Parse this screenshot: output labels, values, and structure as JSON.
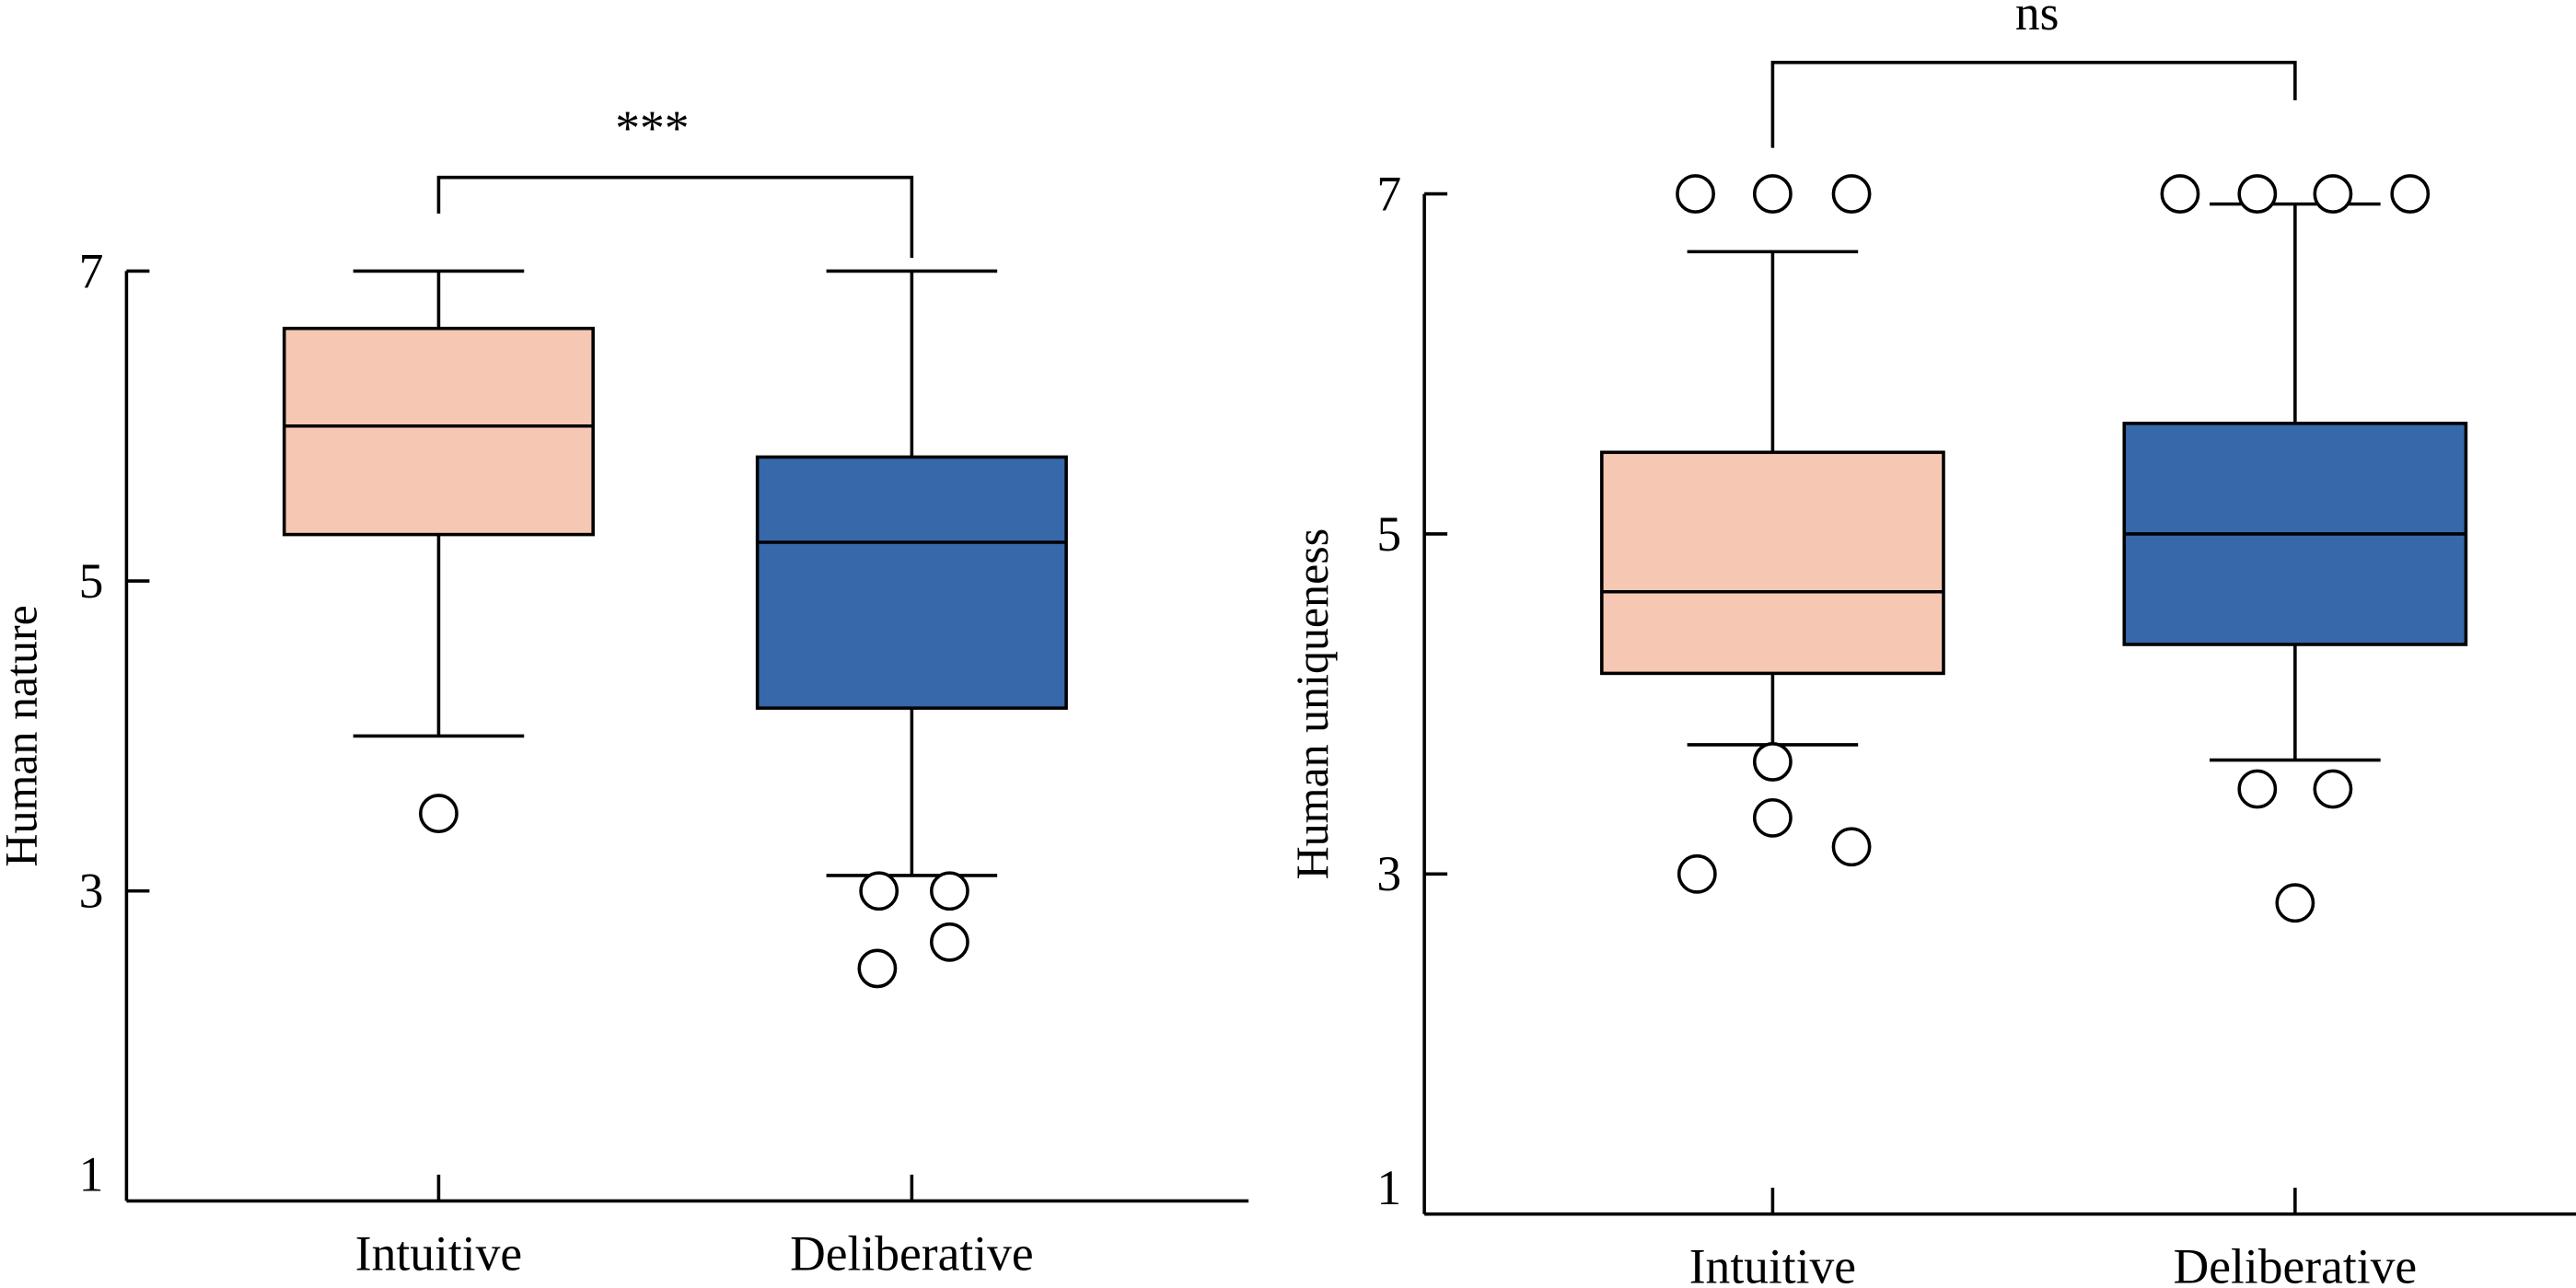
{
  "chart_data": [
    {
      "type": "box",
      "title": "",
      "xlabel": "",
      "ylabel": "Human nature",
      "ylim": [
        1,
        7
      ],
      "yticks": [
        "1",
        "3",
        "5",
        "7"
      ],
      "ytick_values": [
        1,
        3,
        5,
        7
      ],
      "categories": [
        "Intuitive",
        "Deliberative"
      ],
      "series": [
        {
          "name": "Intuitive",
          "color": "#F6C8B4",
          "whisker_low": 4.0,
          "q1": 5.3,
          "median": 6.0,
          "q3": 6.63,
          "whisker_high": 7.0,
          "outliers": [
            3.5
          ]
        },
        {
          "name": "Deliberative",
          "color": "#3668AA",
          "whisker_low": 3.1,
          "q1": 4.18,
          "median": 5.25,
          "q3": 5.8,
          "whisker_high": 7.0,
          "outliers": [
            3.0,
            3.0,
            2.5,
            2.67
          ]
        }
      ],
      "significance": {
        "label": "***",
        "between": [
          "Intuitive",
          "Deliberative"
        ]
      },
      "grid": false
    },
    {
      "type": "box",
      "title": "",
      "xlabel": "",
      "ylabel": "Human uniqueness",
      "ylim": [
        1,
        7
      ],
      "yticks": [
        "1",
        "3",
        "5",
        "7"
      ],
      "ytick_values": [
        1,
        3,
        5,
        7
      ],
      "categories": [
        "Intuitive",
        "Deliberative"
      ],
      "series": [
        {
          "name": "Intuitive",
          "color": "#F6C8B4",
          "whisker_low": 3.76,
          "q1": 4.18,
          "median": 4.66,
          "q3": 5.48,
          "whisker_high": 6.66,
          "outliers": [
            7.0,
            7.0,
            7.0,
            3.66,
            3.33,
            3.16,
            3.0
          ]
        },
        {
          "name": "Deliberative",
          "color": "#3668AA",
          "whisker_low": 3.67,
          "q1": 4.35,
          "median": 5.0,
          "q3": 5.65,
          "whisker_high": 6.94,
          "outliers": [
            7.0,
            7.0,
            7.0,
            7.0,
            3.5,
            3.5,
            2.83
          ]
        }
      ],
      "significance": {
        "label": "ns",
        "between": [
          "Intuitive",
          "Deliberative"
        ]
      },
      "grid": false
    }
  ]
}
